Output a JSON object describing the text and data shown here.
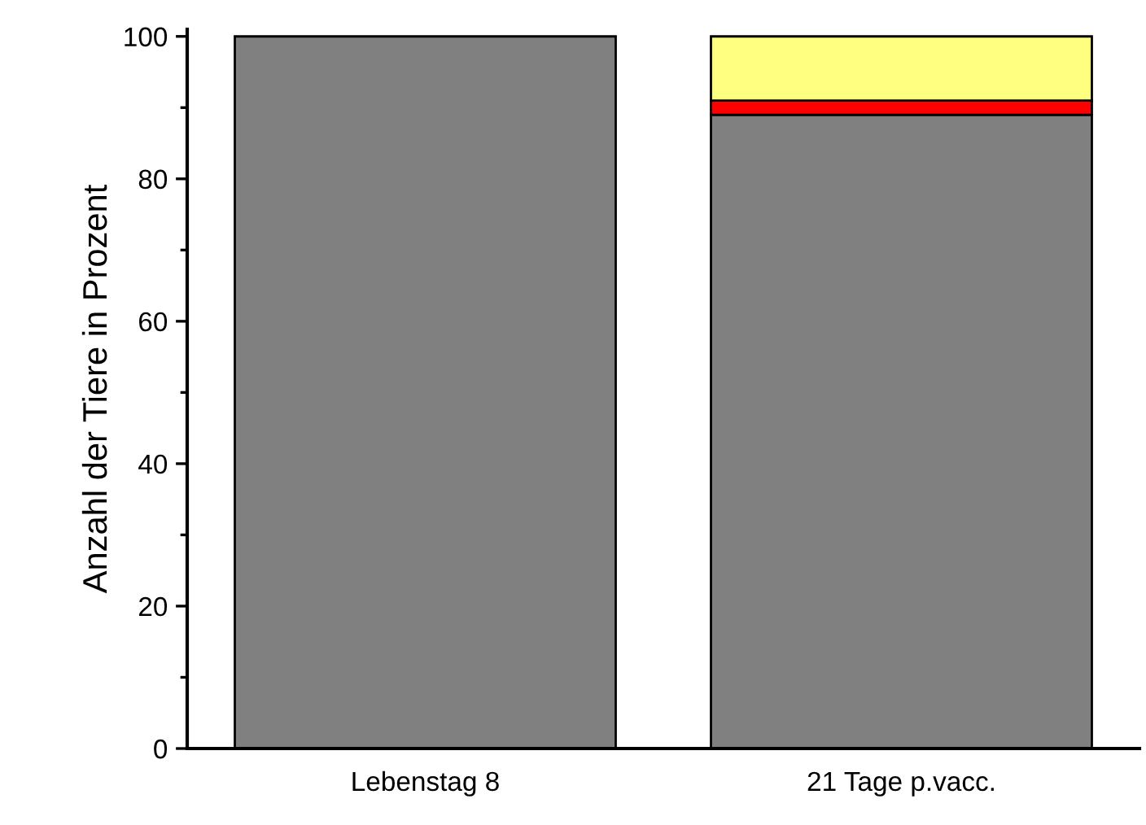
{
  "chart_data": {
    "type": "bar",
    "stacked": true,
    "ylabel": "Anzahl der Tiere in Prozent",
    "categories": [
      "Lebenstag 8",
      "21 Tage p.vacc."
    ],
    "series": [
      {
        "color": "#808080",
        "values": [
          100,
          89
        ]
      },
      {
        "color": "#ff0000",
        "values": [
          0,
          2
        ]
      },
      {
        "color": "#ffff80",
        "values": [
          0,
          9
        ]
      }
    ],
    "ylim": [
      0,
      101
    ],
    "yticks": [
      0,
      {
        "value": 10,
        "label": null
      },
      20,
      {
        "value": 30,
        "label": null
      },
      40,
      {
        "value": 50,
        "label": null
      },
      60,
      {
        "value": 70,
        "label": null
      },
      80,
      {
        "value": 90,
        "label": null
      },
      100
    ],
    "grid": false,
    "legend": false
  }
}
